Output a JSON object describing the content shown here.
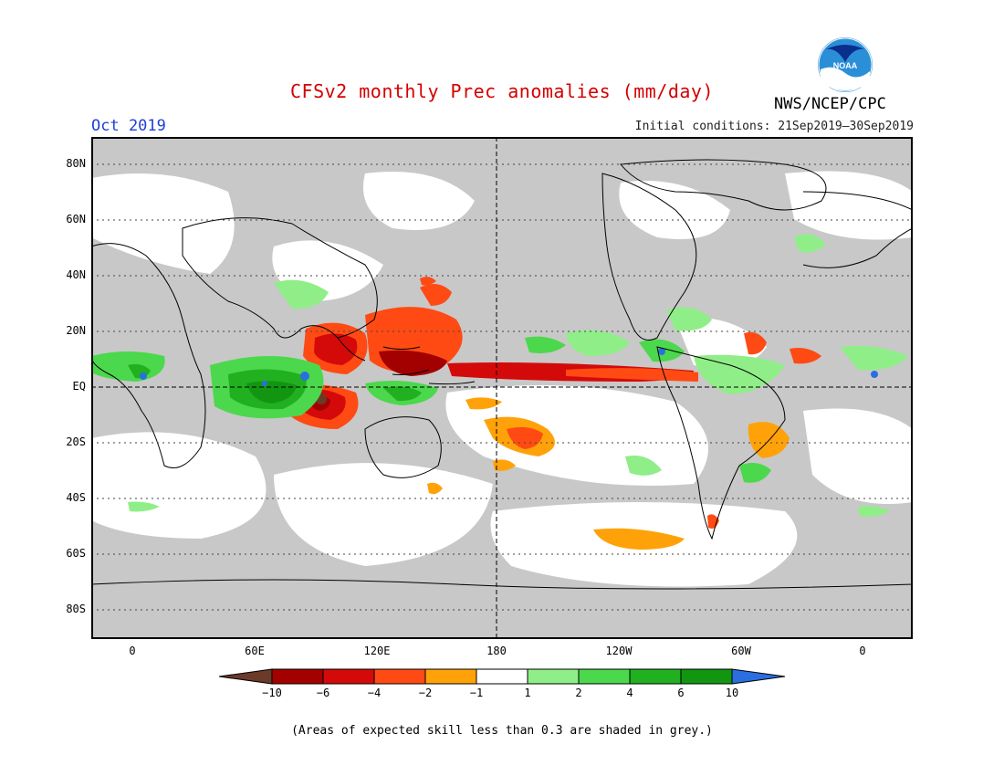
{
  "title": "CFSv2 monthly Prec anomalies (mm/day)",
  "month": "Oct 2019",
  "initial_conditions": "Initial conditions: 21Sep2019–30Sep2019",
  "agency": "NWS/NCEP/CPC",
  "logo_text": "NOAA",
  "footnote": "(Areas of expected skill less than 0.3 are shaded in grey.)",
  "lat_ticks": [
    "80N",
    "60N",
    "40N",
    "20N",
    "EQ",
    "20S",
    "40S",
    "60S",
    "80S"
  ],
  "lon_ticks": [
    "0",
    "60E",
    "120E",
    "180",
    "120W",
    "60W",
    "0"
  ],
  "colorbar": {
    "labels": [
      "−10",
      "−6",
      "−4",
      "−2",
      "−1",
      "1",
      "2",
      "4",
      "6",
      "10"
    ],
    "colors": {
      "lt_m10": "#6b3a28",
      "m10_m6": "#a30000",
      "m6_m4": "#d40a0a",
      "m4_m2": "#ff4a14",
      "m2_m1": "#ffa20a",
      "m1_1": "#ffffff",
      "p1_p2": "#90ee88",
      "p2_p4": "#4cd84c",
      "p4_p6": "#20b020",
      "p6_p10": "#129612",
      "gt_p10": "#2a6fe0"
    }
  },
  "colors": {
    "grey_low_skill": "#c8c8c8",
    "title_red": "#d40000",
    "month_blue": "#1f3fd6"
  }
}
